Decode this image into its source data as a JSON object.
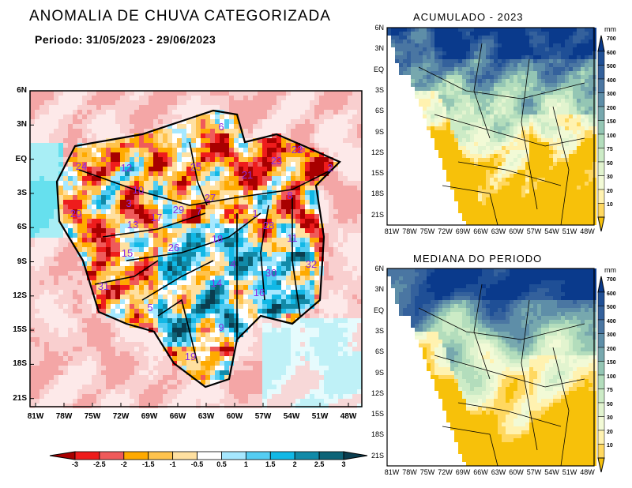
{
  "main_map": {
    "title": "ANOMALIA DE CHUVA CATEGORIZADA",
    "period": "Periodo: 31/05/2023 - 29/06/2023",
    "lat_ticks": [
      "6N",
      "3N",
      "EQ",
      "3S",
      "6S",
      "9S",
      "12S",
      "15S",
      "18S",
      "21S"
    ],
    "lon_ticks": [
      "81W",
      "78W",
      "75W",
      "72W",
      "69W",
      "66W",
      "63W",
      "60W",
      "57W",
      "54W",
      "51W",
      "48W"
    ],
    "basin_labels": [
      "24",
      "12",
      "10",
      "3",
      "20",
      "13",
      "17",
      "29",
      "7",
      "27",
      "25",
      "6",
      "22",
      "23",
      "21",
      "2",
      "8",
      "1",
      "28",
      "11",
      "18",
      "15",
      "26",
      "4",
      "30",
      "32",
      "14",
      "16",
      "31",
      "5",
      "9",
      "19"
    ],
    "colorbar": {
      "labels": [
        "-3",
        "-2.5",
        "-2",
        "-1.5",
        "-1",
        "-0.5",
        "0.5",
        "1",
        "1.5",
        "2",
        "2.5",
        "3"
      ],
      "colors": [
        "#a80000",
        "#ee1c1c",
        "#ef5a5a",
        "#ffaa00",
        "#ffc34d",
        "#ffe0a0",
        "#ffffff",
        "#a6e8ff",
        "#55cdf2",
        "#11b8e6",
        "#118aa8",
        "#0d6478",
        "#0a3d4f"
      ]
    }
  },
  "accum_map": {
    "title": "ACUMULADO - 2023",
    "lat_ticks": [
      "6N",
      "3N",
      "EQ",
      "3S",
      "6S",
      "9S",
      "12S",
      "15S",
      "18S",
      "21S"
    ],
    "lon_ticks": [
      "81W",
      "78W",
      "75W",
      "72W",
      "69W",
      "66W",
      "63W",
      "60W",
      "57W",
      "54W",
      "51W",
      "48W"
    ]
  },
  "median_map": {
    "title": "MEDIANA DO PERIODO",
    "lat_ticks": [
      "6N",
      "3N",
      "EQ",
      "3S",
      "6S",
      "9S",
      "12S",
      "15S",
      "18S",
      "21S"
    ],
    "lon_ticks": [
      "81W",
      "78W",
      "75W",
      "72W",
      "69W",
      "66W",
      "63W",
      "60W",
      "57W",
      "54W",
      "51W",
      "48W"
    ]
  },
  "precip_colorbar": {
    "unit": "mm",
    "labels": [
      "700",
      "600",
      "500",
      "400",
      "300",
      "200",
      "150",
      "100",
      "75",
      "50",
      "30",
      "20",
      "10"
    ],
    "colors": [
      "#0a3a8c",
      "#1f4f96",
      "#34619c",
      "#4a76a2",
      "#5e8ea8",
      "#77a8ae",
      "#94c6b4",
      "#b3ddbc",
      "#ccebc6",
      "#e2f4cf",
      "#f2fad6",
      "#fff2b0",
      "#ffd860",
      "#f7c10a"
    ]
  }
}
